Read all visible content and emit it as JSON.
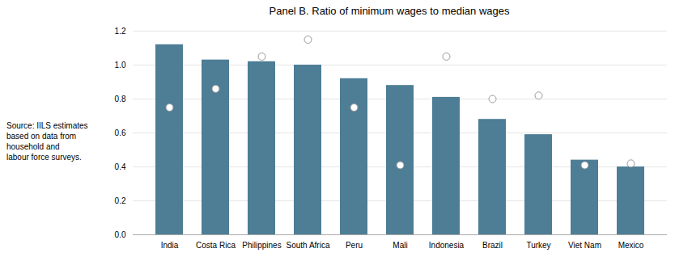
{
  "chart_data": {
    "type": "bar",
    "title": "Panel B. Ratio of minimum wages to median wages",
    "annotations": [
      "Source: IILS estimates\nbased on data from\nhousehold and\nlabour force surveys."
    ],
    "categories": [
      "India",
      "Costa Rica",
      "Philippines",
      "South Africa",
      "Peru",
      "Mali",
      "Indonesia",
      "Brazil",
      "Turkey",
      "Viet Nam",
      "Mexico"
    ],
    "series": [
      {
        "type": "bar",
        "color": "#4e7d96",
        "values": [
          1.12,
          1.03,
          1.02,
          1.0,
          0.92,
          0.88,
          0.81,
          0.68,
          0.59,
          0.44,
          0.4
        ]
      },
      {
        "type": "scatter",
        "color": "white",
        "marker": "circle",
        "values": [
          0.75,
          0.86,
          1.05,
          1.15,
          0.75,
          0.41,
          1.05,
          0.8,
          0.82,
          0.41,
          0.42
        ]
      }
    ],
    "ylim": [
      0,
      1.2
    ],
    "yticks": [
      {
        "value": 0,
        "label": "0.0"
      },
      0.2,
      0.4,
      0.6,
      0.8,
      {
        "value": 1,
        "label": "1.0"
      },
      1.2
    ],
    "grid": true
  }
}
